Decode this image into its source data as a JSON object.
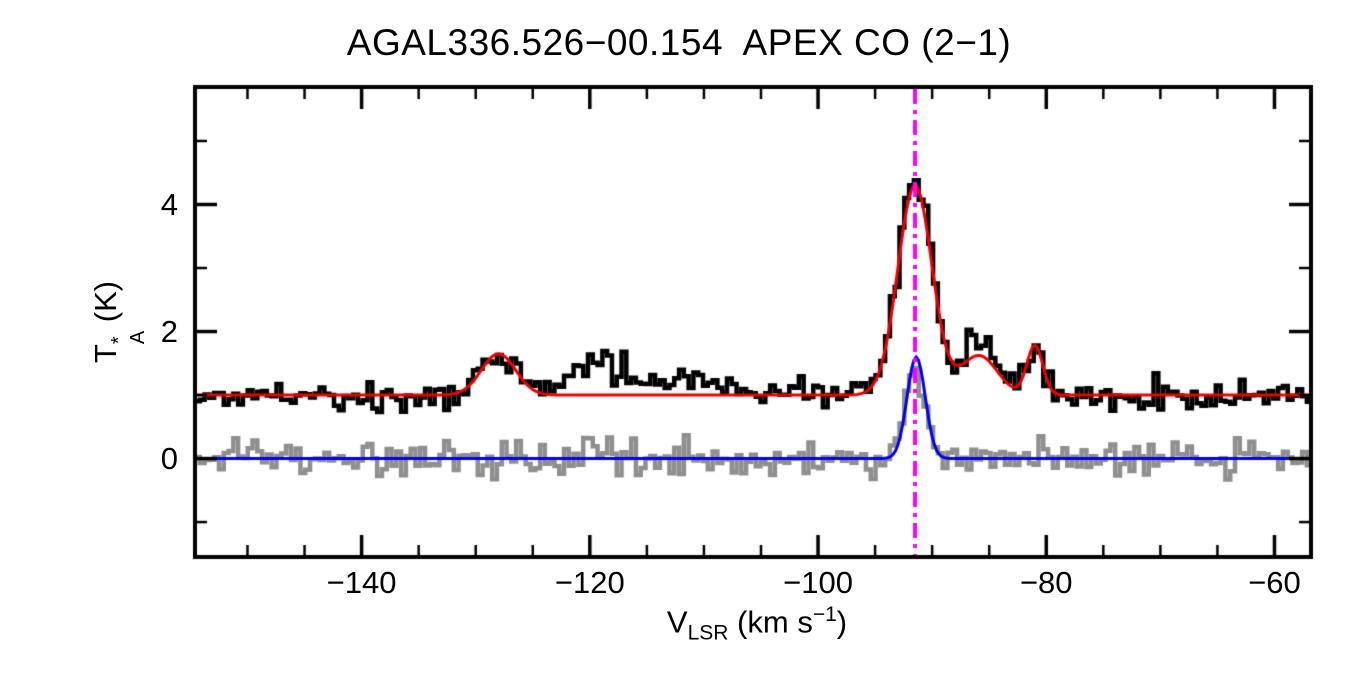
{
  "chart_data": {
    "type": "line",
    "title": "AGAL336.526−00.154  APEX CO (2−1)",
    "xlabel_parts": {
      "main": "V",
      "sub": "LSR",
      "mid": " (km s",
      "sup": "−1",
      "end": ")"
    },
    "ylabel_parts": {
      "main": "T",
      "sup": "*",
      "sub": "A",
      "unit": " (K)"
    },
    "xlim": [
      -154.6,
      -56.8
    ],
    "ylim": [
      -1.55,
      5.85
    ],
    "x_ticks": {
      "major": [
        -140,
        -120,
        -100,
        -80,
        -60
      ],
      "labels": [
        "−140",
        "−120",
        "−100",
        "−80",
        "−60"
      ],
      "minor_step": 5
    },
    "y_ticks": {
      "major": [
        0,
        2,
        4
      ],
      "labels": [
        "0",
        "2",
        "4"
      ],
      "minor": [
        -1,
        1,
        3,
        5
      ]
    },
    "grid": false,
    "legend": "none",
    "channel_width": 0.42,
    "series": [
      {
        "name": "offset-spectrum-gray",
        "style": "histogram",
        "color": "#8f8f8f",
        "line_width": 4.5,
        "baseline": 0.0,
        "noise_sigma": 0.14,
        "noise_seed": 91,
        "gaussians": [
          {
            "center": -91.5,
            "amp": 1.5,
            "sigma": 0.85
          }
        ]
      },
      {
        "name": "fit-blue",
        "style": "smooth",
        "color": "#0000ee",
        "line_width": 3,
        "baseline": 0.0,
        "gaussians": [
          {
            "center": -91.4,
            "amp": 1.6,
            "sigma": 0.8
          }
        ]
      },
      {
        "name": "observed-spectrum-black",
        "style": "histogram",
        "color": "#000000",
        "line_width": 4.5,
        "baseline": 1.0,
        "noise_sigma": 0.13,
        "noise_seed": 17,
        "gaussians": [
          {
            "center": -128.0,
            "amp": 0.62,
            "sigma": 1.6
          },
          {
            "center": -118.5,
            "amp": 0.45,
            "sigma": 2.6
          },
          {
            "center": -111.0,
            "amp": 0.25,
            "sigma": 1.6
          },
          {
            "center": -91.5,
            "amp": 3.45,
            "sigma": 1.5
          },
          {
            "center": -86.0,
            "amp": 0.8,
            "sigma": 1.4
          },
          {
            "center": -81.0,
            "amp": 0.75,
            "sigma": 0.8
          }
        ]
      },
      {
        "name": "fit-red",
        "style": "smooth",
        "color": "#ee0000",
        "line_width": 3,
        "baseline": 1.0,
        "gaussians": [
          {
            "center": -128.0,
            "amp": 0.65,
            "sigma": 1.5
          },
          {
            "center": -91.5,
            "amp": 3.3,
            "sigma": 1.5
          },
          {
            "center": -85.9,
            "amp": 0.62,
            "sigma": 1.6
          },
          {
            "center": -81.0,
            "amp": 0.78,
            "sigma": 0.7
          }
        ]
      }
    ],
    "vline": {
      "x": -91.5,
      "color": "#ff00ff",
      "dash": [
        15,
        6,
        4,
        6
      ],
      "width": 4
    }
  }
}
